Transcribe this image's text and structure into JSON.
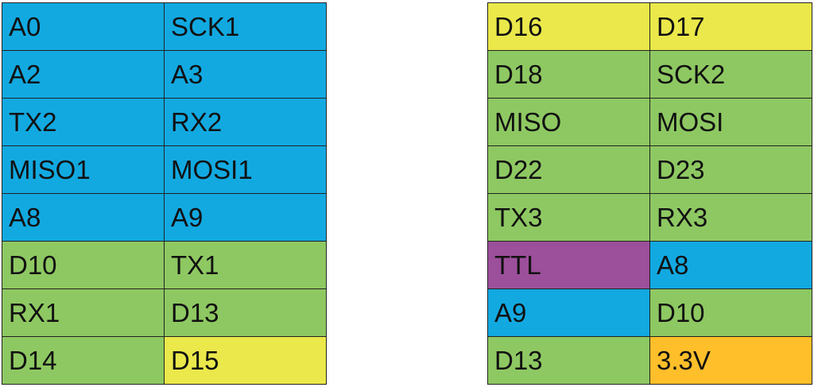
{
  "tables": [
    {
      "rows": [
        [
          {
            "text": "A0",
            "color": "#12a9e1"
          },
          {
            "text": "SCK1",
            "color": "#12a9e1"
          }
        ],
        [
          {
            "text": "A2",
            "color": "#12a9e1"
          },
          {
            "text": "A3",
            "color": "#12a9e1"
          }
        ],
        [
          {
            "text": "TX2",
            "color": "#12a9e1"
          },
          {
            "text": "RX2",
            "color": "#12a9e1"
          }
        ],
        [
          {
            "text": "MISO1",
            "color": "#12a9e1"
          },
          {
            "text": "MOSI1",
            "color": "#12a9e1"
          }
        ],
        [
          {
            "text": "A8",
            "color": "#12a9e1"
          },
          {
            "text": "A9",
            "color": "#12a9e1"
          }
        ],
        [
          {
            "text": "D10",
            "color": "#8ec862"
          },
          {
            "text": "TX1",
            "color": "#8ec862"
          }
        ],
        [
          {
            "text": "RX1",
            "color": "#8ec862"
          },
          {
            "text": "D13",
            "color": "#8ec862"
          }
        ],
        [
          {
            "text": "D14",
            "color": "#8ec862"
          },
          {
            "text": "D15",
            "color": "#eae84a"
          }
        ]
      ]
    },
    {
      "rows": [
        [
          {
            "text": "D16",
            "color": "#eae84a"
          },
          {
            "text": "D17",
            "color": "#eae84a"
          }
        ],
        [
          {
            "text": "D18",
            "color": "#8ec862"
          },
          {
            "text": "SCK2",
            "color": "#8ec862"
          }
        ],
        [
          {
            "text": "MISO",
            "color": "#8ec862"
          },
          {
            "text": "MOSI",
            "color": "#8ec862"
          }
        ],
        [
          {
            "text": "D22",
            "color": "#8ec862"
          },
          {
            "text": "D23",
            "color": "#8ec862"
          }
        ],
        [
          {
            "text": "TX3",
            "color": "#8ec862"
          },
          {
            "text": "RX3",
            "color": "#8ec862"
          }
        ],
        [
          {
            "text": "TTL",
            "color": "#9c4f9b"
          },
          {
            "text": "A8",
            "color": "#12a9e1"
          }
        ],
        [
          {
            "text": "A9",
            "color": "#12a9e1"
          },
          {
            "text": "D10",
            "color": "#8ec862"
          }
        ],
        [
          {
            "text": "D13",
            "color": "#8ec862"
          },
          {
            "text": "3.3V",
            "color": "#ffbf2a"
          }
        ]
      ]
    }
  ]
}
